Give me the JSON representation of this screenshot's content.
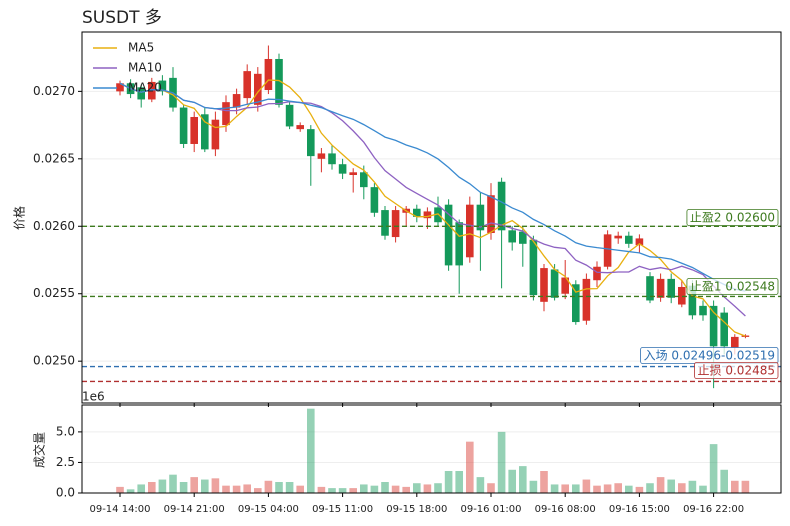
{
  "chart_data": {
    "type": "candlestick",
    "title": "SUSDT  多",
    "ylabel": "价格",
    "categories": [
      "09-14 14:00",
      null,
      null,
      null,
      null,
      null,
      null,
      "09-14 21:00",
      null,
      null,
      null,
      null,
      null,
      null,
      "09-15 04:00",
      null,
      null,
      null,
      null,
      null,
      null,
      "09-15 11:00",
      null,
      null,
      null,
      null,
      null,
      null,
      "09-15 18:00",
      null,
      null,
      null,
      null,
      null,
      null,
      "09-16 01:00",
      null,
      null,
      null,
      null,
      null,
      null,
      "09-16 08:00",
      null,
      null,
      null,
      null,
      null,
      null,
      "09-16 15:00",
      null,
      null,
      null,
      null,
      null,
      null,
      "09-16 22:00",
      null,
      null,
      null
    ],
    "open": [
      0.027,
      0.02706,
      0.02703,
      0.02694,
      0.02708,
      0.0271,
      0.02688,
      0.02661,
      0.02683,
      0.02657,
      0.02675,
      0.02688,
      0.02695,
      0.0269,
      0.02701,
      0.02724,
      0.0269,
      0.02672,
      0.02672,
      0.0265,
      0.02654,
      0.02646,
      0.02638,
      0.0264,
      0.02629,
      0.02612,
      0.02592,
      0.0261,
      0.02613,
      0.02606,
      0.02614,
      0.02616,
      0.02603,
      0.02577,
      0.02616,
      0.02595,
      0.02633,
      0.02597,
      0.02596,
      0.0259,
      0.02544,
      0.02568,
      0.0255,
      0.02557,
      0.0253,
      0.0256,
      0.0257,
      0.02591,
      0.02593,
      0.02586,
      0.02563,
      0.02547,
      0.02561,
      0.02542,
      0.02556,
      0.02541,
      0.02541,
      0.02536,
      0.0251,
      0.02518
    ],
    "close": [
      0.02706,
      0.02698,
      0.02694,
      0.02707,
      0.027,
      0.02688,
      0.02661,
      0.02681,
      0.02657,
      0.02679,
      0.02692,
      0.02698,
      0.02715,
      0.02713,
      0.02724,
      0.0269,
      0.02674,
      0.02675,
      0.02652,
      0.02654,
      0.02646,
      0.02639,
      0.0264,
      0.02629,
      0.0261,
      0.02593,
      0.02612,
      0.02613,
      0.02607,
      0.02611,
      0.02603,
      0.02571,
      0.02571,
      0.02616,
      0.02597,
      0.02623,
      0.02597,
      0.02588,
      0.02587,
      0.02549,
      0.02569,
      0.02547,
      0.02562,
      0.02529,
      0.02561,
      0.0257,
      0.02594,
      0.02593,
      0.02587,
      0.02591,
      0.02545,
      0.02561,
      0.02547,
      0.02555,
      0.02534,
      0.02534,
      0.02511,
      0.02511,
      0.02518,
      0.02519
    ],
    "high": [
      0.02708,
      0.02709,
      0.02705,
      0.0271,
      0.02712,
      0.02718,
      0.0269,
      0.02685,
      0.02688,
      0.02685,
      0.02697,
      0.02702,
      0.0272,
      0.02718,
      0.02734,
      0.02728,
      0.02693,
      0.02677,
      0.02675,
      0.02658,
      0.0266,
      0.0265,
      0.02643,
      0.02645,
      0.02632,
      0.02615,
      0.02615,
      0.02615,
      0.02616,
      0.02614,
      0.02622,
      0.0262,
      0.02605,
      0.02622,
      0.02625,
      0.02632,
      0.02636,
      0.026,
      0.026,
      0.02593,
      0.02572,
      0.02572,
      0.02575,
      0.0256,
      0.02565,
      0.02574,
      0.02597,
      0.02596,
      0.02596,
      0.02594,
      0.02566,
      0.02565,
      0.02565,
      0.0256,
      0.0256,
      0.02545,
      0.02545,
      0.0254,
      0.0252,
      0.0252
    ],
    "low": [
      0.02697,
      0.02695,
      0.02688,
      0.02692,
      0.02697,
      0.02685,
      0.02658,
      0.02655,
      0.02655,
      0.02652,
      0.0267,
      0.02683,
      0.0269,
      0.02685,
      0.02698,
      0.02688,
      0.02672,
      0.0267,
      0.0263,
      0.0264,
      0.02642,
      0.02635,
      0.02625,
      0.0262,
      0.02607,
      0.0259,
      0.02588,
      0.026,
      0.02603,
      0.02598,
      0.026,
      0.02567,
      0.0255,
      0.02573,
      0.02567,
      0.0259,
      0.02554,
      0.02582,
      0.0257,
      0.02545,
      0.02537,
      0.02545,
      0.02546,
      0.02527,
      0.02527,
      0.02555,
      0.02568,
      0.02587,
      0.02584,
      0.0258,
      0.02543,
      0.02544,
      0.02543,
      0.0254,
      0.02531,
      0.0253,
      0.0248,
      0.02505,
      0.02505,
      0.02517
    ],
    "up_color": "#d8322a",
    "down_color": "#14995a",
    "ylim": [
      0.02469,
      0.02744
    ],
    "yticks": [
      {
        "value": 0.025,
        "label": "0.0250"
      },
      {
        "value": 0.0255,
        "label": "0.0255"
      },
      {
        "value": 0.026,
        "label": "0.0260"
      },
      {
        "value": 0.0265,
        "label": "0.0265"
      },
      {
        "value": 0.027,
        "label": "0.0270"
      }
    ],
    "grid": true,
    "moving_averages": [
      {
        "name": "MA5",
        "period": 5,
        "color": "#e8b010"
      },
      {
        "name": "MA10",
        "period": 10,
        "color": "#8e62c2"
      },
      {
        "name": "MA20",
        "period": 20,
        "color": "#3a8ad0"
      }
    ],
    "legend": "upper left",
    "levels": [
      {
        "label": "止盈2 0.02600",
        "value": 0.026,
        "color": "#3d7a1e"
      },
      {
        "label": "止盈1 0.02548",
        "value": 0.02548,
        "color": "#3d7a1e"
      },
      {
        "label": "入场 0.02496-0.02519",
        "value": 0.02496,
        "color": "#2f6fb0"
      },
      {
        "label": "止损 0.02485",
        "value": 0.02485,
        "color": "#b03030"
      }
    ],
    "volume": {
      "ylabel": "成交量",
      "offset_label": "1e6",
      "values": [
        0.5,
        0.3,
        0.7,
        0.9,
        1.1,
        1.5,
        0.9,
        1.3,
        1.1,
        1.2,
        0.6,
        0.6,
        0.7,
        0.4,
        1.0,
        0.9,
        0.9,
        0.6,
        6.9,
        0.5,
        0.4,
        0.4,
        0.4,
        0.7,
        0.6,
        0.9,
        0.6,
        0.5,
        0.8,
        0.7,
        0.8,
        1.8,
        1.8,
        4.2,
        1.3,
        0.8,
        5.0,
        1.9,
        2.2,
        1.0,
        1.8,
        0.7,
        0.7,
        0.7,
        1.1,
        0.6,
        0.7,
        0.8,
        0.6,
        0.5,
        0.8,
        1.3,
        1.1,
        0.8,
        1.0,
        0.6,
        4.0,
        1.9,
        1.0,
        1.0
      ],
      "ylim": [
        0,
        7.2
      ],
      "yticks": [
        {
          "value": 0,
          "label": "0.0"
        },
        {
          "value": 2.5,
          "label": "2.5"
        },
        {
          "value": 5,
          "label": "5.0"
        }
      ]
    }
  }
}
